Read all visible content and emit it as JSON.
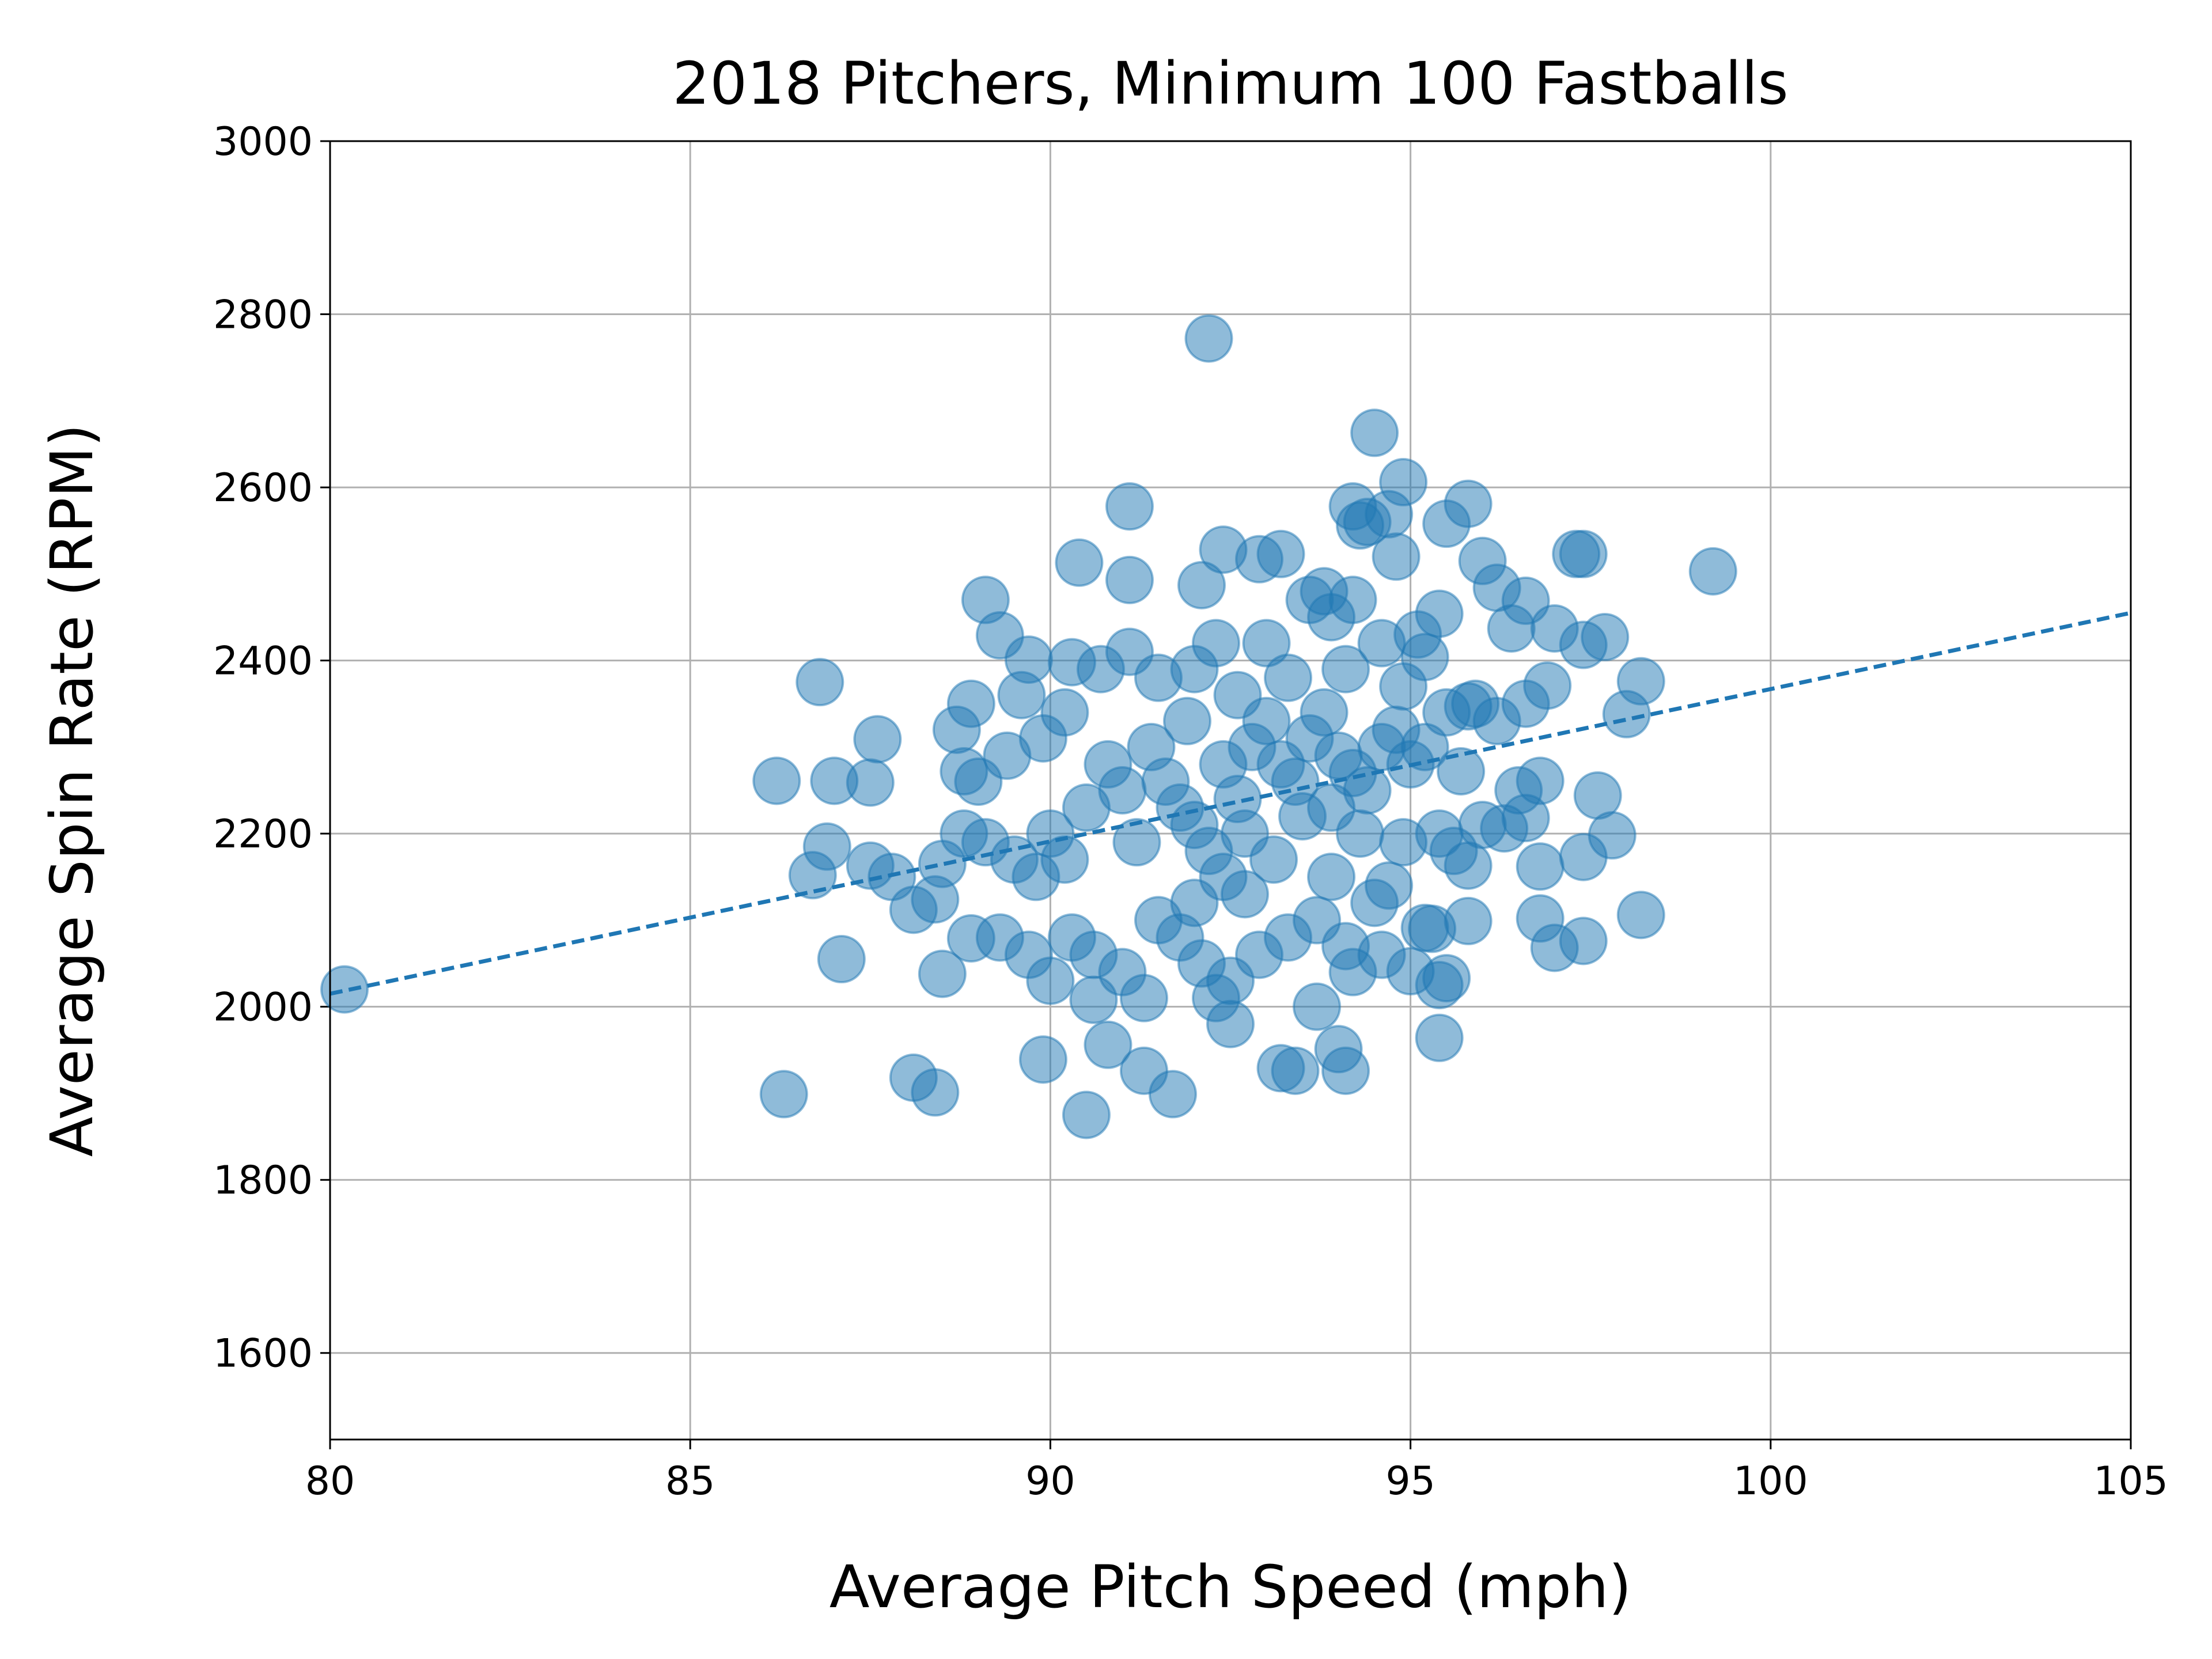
{
  "chart_data": {
    "type": "scatter",
    "title": "2018 Pitchers, Minimum 100 Fastballs",
    "x_label": "Average Pitch Speed (mph)",
    "y_label": "Average Spin Rate (RPM)",
    "xlim": [
      80,
      105
    ],
    "xticks": [
      80,
      85,
      90,
      95,
      100,
      105
    ],
    "ylim": [
      1500,
      3000
    ],
    "yticks": [
      1600,
      1800,
      2000,
      2200,
      2400,
      2600,
      2800,
      3000
    ],
    "grid": true,
    "color": "#1f77b4",
    "alpha": 0.5,
    "x": [
      80.2,
      92.2,
      99.2,
      94.5,
      94.9,
      91.1,
      86.3,
      86.2,
      86.8,
      87.0,
      87.5,
      87.6,
      86.9,
      86.7,
      87.1,
      87.5,
      87.8,
      88.1,
      88.1,
      88.4,
      88.5,
      88.5,
      88.4,
      89.1,
      89.3,
      88.7,
      88.9,
      88.8,
      88.9,
      89.9,
      90.5,
      90.4,
      91.1,
      89.6,
      89.7,
      90.3,
      90.6,
      90.8,
      91.3,
      91.7,
      92.1,
      92.4,
      92.9,
      93.2,
      93.2,
      93.4,
      94.0,
      94.1,
      95.4,
      94.2,
      94.3,
      94.7,
      95.8,
      95.5,
      96.0,
      94.8,
      96.2,
      96.6,
      97.3,
      97.4,
      97.7,
      97.4,
      98.2,
      98.0,
      97.8,
      97.6,
      97.4,
      98.2,
      97.4,
      97.0,
      96.8,
      96.8,
      96.8,
      96.6,
      96.3,
      95.8,
      95.5,
      95.4,
      95.2,
      95.0,
      94.7,
      95.8,
      95.7,
      95.8,
      95.4,
      95.2,
      96.4,
      97.0,
      96.9,
      96.6,
      90.0,
      90.2,
      90.5,
      90.8,
      91.0,
      91.2,
      91.4,
      91.6,
      91.8,
      92.0,
      92.2,
      92.4,
      92.6,
      92.8,
      93.0,
      93.2,
      93.4,
      93.6,
      93.8,
      94.0,
      94.2,
      94.4,
      94.6,
      94.8,
      95.0,
      95.2,
      91.5,
      91.8,
      92.1,
      92.5,
      92.9,
      93.3,
      93.7,
      94.1,
      94.5,
      90.3,
      90.6,
      91.0,
      91.3,
      92.3,
      92.5,
      93.7,
      94.2,
      89.5,
      89.8,
      89.4,
      89.9,
      90.2,
      90.7,
      91.1,
      91.5,
      92.0,
      92.3,
      92.6,
      93.0,
      93.3,
      93.9,
      94.2,
      94.6,
      93.6,
      94.9,
      95.5,
      95.9,
      96.2,
      95.4,
      95.6,
      94.9,
      94.3,
      93.5,
      92.7,
      92.0,
      92.7,
      93.9,
      94.6,
      89.3,
      89.7,
      90.0,
      88.8,
      89.1,
      89.0,
      91.9,
      92.4,
      93.1,
      93.9,
      95.3,
      95.1,
      96.0,
      96.5,
      94.4,
      93.8,
      94.1
    ],
    "values": [
      2020,
      2772,
      2503,
      2663,
      2606,
      2578,
      1899,
      2261,
      2375,
      2261,
      2259,
      2309,
      2185,
      2152,
      2055,
      2163,
      2150,
      2112,
      1918,
      1901,
      2038,
      2165,
      2124,
      2470,
      2429,
      2320,
      2350,
      2272,
      2079,
      1939,
      1875,
      2513,
      2493,
      2360,
      2401,
      2398,
      2008,
      1956,
      1926,
      1899,
      2487,
      2528,
      2517,
      2523,
      1929,
      1926,
      1951,
      1926,
      1964,
      2578,
      2556,
      2569,
      2581,
      2558,
      2515,
      2520,
      2484,
      2469,
      2523,
      2523,
      2427,
      2418,
      2376,
      2338,
      2198,
      2244,
      2173,
      2106,
      2076,
      2068,
      2102,
      2261,
      2162,
      2218,
      2206,
      2099,
      2033,
      2025,
      2091,
      2041,
      2140,
      2163,
      2272,
      2347,
      2454,
      2404,
      2437,
      2437,
      2371,
      2350,
      2200,
      2170,
      2230,
      2280,
      2250,
      2190,
      2300,
      2260,
      2230,
      2210,
      2180,
      2150,
      2240,
      2300,
      2330,
      2280,
      2260,
      2310,
      2340,
      2290,
      2270,
      2250,
      2300,
      2320,
      2280,
      2300,
      2100,
      2080,
      2050,
      2030,
      2060,
      2080,
      2100,
      2070,
      2120,
      2080,
      2060,
      2040,
      2010,
      2010,
      1980,
      2000,
      2040,
      2170,
      2150,
      2290,
      2310,
      2340,
      2390,
      2410,
      2380,
      2390,
      2420,
      2360,
      2420,
      2380,
      2450,
      2470,
      2420,
      2470,
      2370,
      2340,
      2350,
      2330,
      2200,
      2180,
      2190,
      2200,
      2220,
      2200,
      2120,
      2130,
      2150,
      2060,
      2080,
      2060,
      2030,
      2200,
      2190,
      2260,
      2330,
      2280,
      2170,
      2230,
      2090,
      2430,
      2210,
      2250,
      2560,
      2480,
      2390
    ],
    "fit_line": {
      "x": [
        80,
        105
      ],
      "values": [
        2015,
        2455
      ],
      "color": "#1f77b4",
      "dashed": true
    }
  }
}
